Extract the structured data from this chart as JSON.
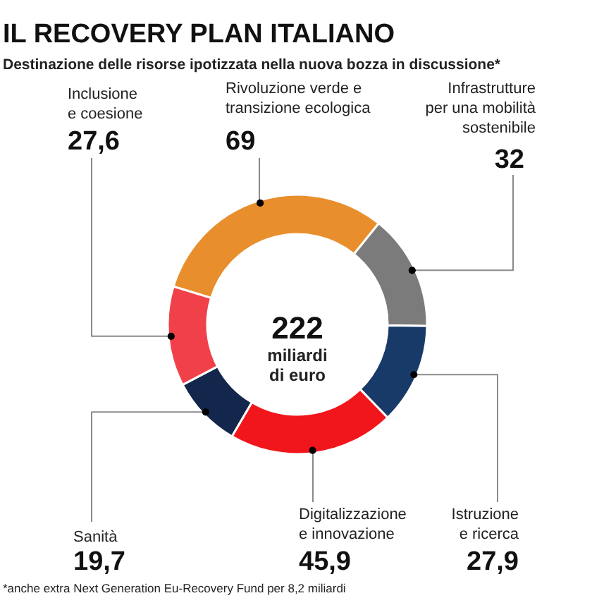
{
  "chart_data": {
    "type": "donut",
    "title": "IL RECOVERY PLAN ITALIANO",
    "subtitle": "Destinazione delle risorse ipotizzata nella nuova bozza in discussione*",
    "categories": [
      "Rivoluzione verde e transizione ecologica",
      "Infrastrutture per una mobilità sostenibile",
      "Istruzione e ricerca",
      "Digitalizzazione e innovazione",
      "Sanità",
      "Inclusione e coesione"
    ],
    "values": [
      69,
      32,
      27.9,
      45.9,
      19.7,
      27.6
    ],
    "value_labels": [
      "69",
      "32",
      "27,9",
      "45,9",
      "19,7",
      "27,6"
    ],
    "colors": [
      "#e98e2c",
      "#7b7b7b",
      "#183a68",
      "#f0161b",
      "#13264c",
      "#f0414a"
    ],
    "annotations": [
      "222 miliardi di euro",
      "*anche extra Next Generation Eu-Recovery Fund per 8,2 miliardi"
    ]
  }
}
